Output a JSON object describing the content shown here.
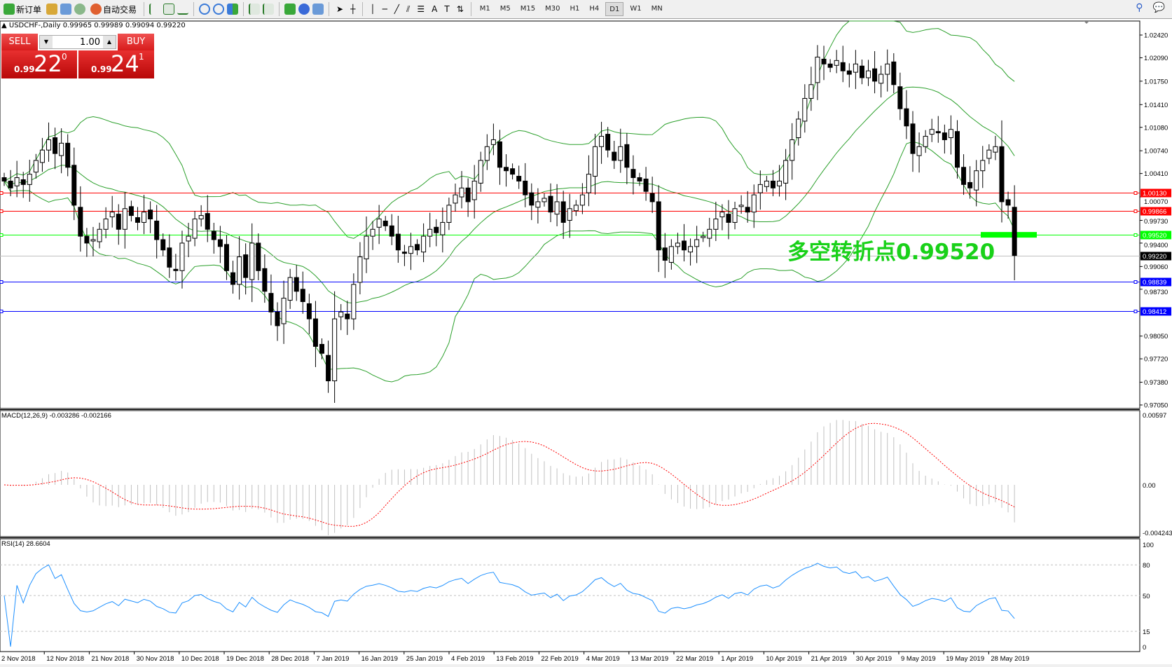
{
  "toolbar": {
    "new_order": "新订单",
    "auto_trading": "自动交易",
    "icons": [
      "new-order-icon",
      "market-watch-icon",
      "data-window-icon",
      "signals-icon",
      "auto-trading-icon",
      "bar-chart-icon",
      "candlestick-icon",
      "line-chart-icon",
      "zoom-in-icon",
      "zoom-out-icon",
      "tile-windows-icon",
      "autoscroll-icon",
      "chart-shift-icon",
      "indicators-icon",
      "periods-icon",
      "templates-icon",
      "cursor-icon",
      "crosshair-icon",
      "vertical-line-icon",
      "horizontal-line-icon",
      "trendline-icon",
      "equidistant-channel-icon",
      "fibonacci-icon",
      "text-icon",
      "text-label-icon",
      "arrows-icon"
    ],
    "timeframes": [
      "M1",
      "M5",
      "M15",
      "M30",
      "H1",
      "H4",
      "D1",
      "W1",
      "MN"
    ],
    "active_timeframe": "D1"
  },
  "chart": {
    "title": "USDCHF-,Daily  0.99965 0.99989 0.99094 0.99220",
    "trade_panel": {
      "sell": "SELL",
      "buy": "BUY",
      "lot": "1.00",
      "bid_prefix": "0.99",
      "bid_big": "22",
      "bid_sup": "0",
      "ask_prefix": "0.99",
      "ask_big": "24",
      "ask_sup": "1"
    },
    "annotation": "多空转折点0.99520",
    "price_axis": [
      "1.02420",
      "1.02090",
      "1.01750",
      "1.01410",
      "1.01080",
      "1.00740",
      "1.00410",
      "1.00070",
      "0.99730",
      "0.99400",
      "0.99060",
      "0.98730",
      "0.98050",
      "0.97720",
      "0.97380",
      "0.97050"
    ],
    "hlines": [
      {
        "price": "1.00130",
        "color": "#ff0000"
      },
      {
        "price": "0.99866",
        "color": "#ff0000"
      },
      {
        "price": "0.99520",
        "color": "#00ff00"
      },
      {
        "price": "0.99220",
        "color": "#000000",
        "line": "#c0c0c0"
      },
      {
        "price": "0.98839",
        "color": "#0000ff"
      },
      {
        "price": "0.98412",
        "color": "#0000ff"
      }
    ],
    "macd": {
      "title": "MACD(12,26,9) -0.003286 -0.002166",
      "axis": [
        "0.00597",
        "0.00",
        "-0.004243"
      ]
    },
    "rsi": {
      "title": "RSI(14) 28.6604",
      "axis": [
        "100",
        "80",
        "50",
        "15",
        "0"
      ],
      "levels": [
        80,
        50,
        15
      ]
    },
    "dates": [
      "2 Nov 2018",
      "12 Nov 2018",
      "21 Nov 2018",
      "30 Nov 2018",
      "10 Dec 2018",
      "19 Dec 2018",
      "28 Dec 2018",
      "7 Jan 2019",
      "16 Jan 2019",
      "25 Jan 2019",
      "4 Feb 2019",
      "13 Feb 2019",
      "22 Feb 2019",
      "4 Mar 2019",
      "13 Mar 2019",
      "22 Mar 2019",
      "1 Apr 2019",
      "10 Apr 2019",
      "21 Apr 2019",
      "30 Apr 2019",
      "9 May 2019",
      "19 May 2019",
      "28 May 2019"
    ]
  },
  "chart_data": {
    "type": "candlestick",
    "symbol": "USDCHF-",
    "timeframe": "Daily",
    "ylim": [
      0.9705,
      1.0242
    ],
    "indicators": [
      "Bollinger Bands(20,2)",
      "MACD(12,26,9)",
      "RSI(14)"
    ],
    "closes": [
      1.003,
      1.002,
      1.0035,
      1.0025,
      1.004,
      1.006,
      1.0075,
      1.009,
      1.007,
      1.0085,
      1.005,
      0.9995,
      0.995,
      0.994,
      0.9945,
      0.996,
      0.9975,
      0.9985,
      0.996,
      0.999,
      0.998,
      0.997,
      0.9985,
      0.9975,
      0.9945,
      0.993,
      0.9905,
      0.99,
      0.994,
      0.995,
      0.9975,
      0.998,
      0.996,
      0.9945,
      0.9935,
      0.99,
      0.988,
      0.992,
      0.989,
      0.994,
      0.99,
      0.987,
      0.984,
      0.982,
      0.986,
      0.989,
      0.987,
      0.9855,
      0.983,
      0.979,
      0.978,
      0.974,
      0.983,
      0.984,
      0.983,
      0.988,
      0.992,
      0.995,
      0.996,
      0.9975,
      0.9965,
      0.995,
      0.993,
      0.9925,
      0.9935,
      0.993,
      0.995,
      0.996,
      0.9955,
      0.997,
      0.9995,
      1.001,
      1.002,
      1.0,
      1.003,
      1.006,
      1.008,
      1.009,
      1.005,
      1.0045,
      1.004,
      1.003,
      1.001,
      0.9995,
      1.0,
      1.0005,
      0.9985,
      1.0,
      0.997,
      0.999,
      0.9995,
      1.001,
      1.004,
      1.008,
      1.0095,
      1.0075,
      1.006,
      1.008,
      1.005,
      1.0035,
      1.003,
      1.0015,
      1.0,
      0.993,
      0.9915,
      0.9935,
      0.994,
      0.993,
      0.9935,
      0.9945,
      0.995,
      0.996,
      0.9975,
      0.9985,
      0.997,
      0.999,
      0.9995,
      0.9985,
      1.001,
      1.0025,
      1.003,
      1.002,
      1.003,
      1.006,
      1.009,
      1.012,
      1.015,
      1.017,
      1.021,
      1.02,
      1.0195,
      1.0205,
      1.019,
      1.0185,
      1.02,
      1.018,
      1.019,
      1.0175,
      1.0185,
      1.02,
      1.017,
      1.0135,
      1.011,
      1.007,
      1.008,
      1.0095,
      1.0105,
      1.01,
      1.009,
      1.0105,
      1.005,
      1.0025,
      1.002,
      1.0045,
      1.006,
      1.0075,
      1.008,
      1.0,
      0.9995,
      0.9922
    ]
  }
}
